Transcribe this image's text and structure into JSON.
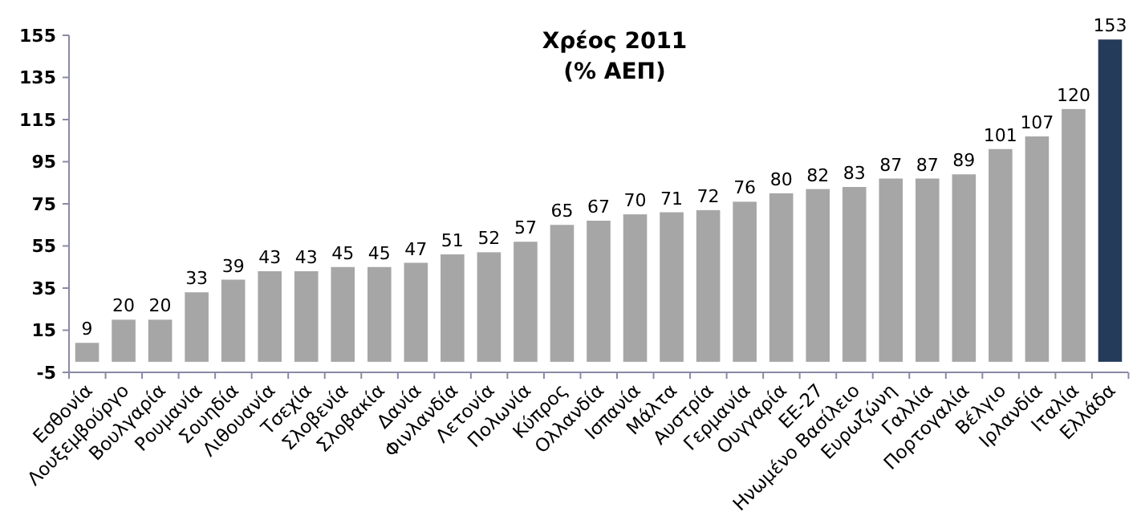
{
  "chart_data": {
    "type": "bar",
    "title": "Χρέος 2011",
    "subtitle": "(% ΑΕΠ)",
    "categories": [
      "Εσθονία",
      "Λουξεμβούργο",
      "Βουλγαρία",
      "Ρουμανία",
      "Σουηδία",
      "Λιθουανία",
      "Τσεχία",
      "Σλοβενία",
      "Σλοβακία",
      "Δανία",
      "Φινλανδία",
      "Λετονία",
      "Πολωνία",
      "Κύπρος",
      "Ολλανδία",
      "Ισπανία",
      "Μάλτα",
      "Αυστρία",
      "Γερμανία",
      "Ουγγαρία",
      "ΕΕ-27",
      "Ηνωμένο Βασίλειο",
      "Ευρωζώνη",
      "Γαλλία",
      "Πορτογαλία",
      "Βέλγιο",
      "Ιρλανδία",
      "Ιταλία",
      "Ελλάδα"
    ],
    "values": [
      9,
      20,
      20,
      33,
      39,
      43,
      43,
      45,
      45,
      47,
      51,
      52,
      57,
      65,
      67,
      70,
      71,
      72,
      76,
      80,
      82,
      83,
      87,
      87,
      89,
      101,
      107,
      120,
      153
    ],
    "colors": [
      "#a6a6a6",
      "#a6a6a6",
      "#a6a6a6",
      "#a6a6a6",
      "#a6a6a6",
      "#a6a6a6",
      "#a6a6a6",
      "#a6a6a6",
      "#a6a6a6",
      "#a6a6a6",
      "#a6a6a6",
      "#a6a6a6",
      "#a6a6a6",
      "#a6a6a6",
      "#a6a6a6",
      "#a6a6a6",
      "#a6a6a6",
      "#a6a6a6",
      "#a6a6a6",
      "#a6a6a6",
      "#a6a6a6",
      "#a6a6a6",
      "#a6a6a6",
      "#a6a6a6",
      "#a6a6a6",
      "#a6a6a6",
      "#a6a6a6",
      "#a6a6a6",
      "#243b5a"
    ],
    "ylim": [
      -5,
      155
    ],
    "yticks": [
      -5,
      15,
      35,
      55,
      75,
      95,
      115,
      135,
      155
    ],
    "data_labels": true,
    "grid": false
  }
}
